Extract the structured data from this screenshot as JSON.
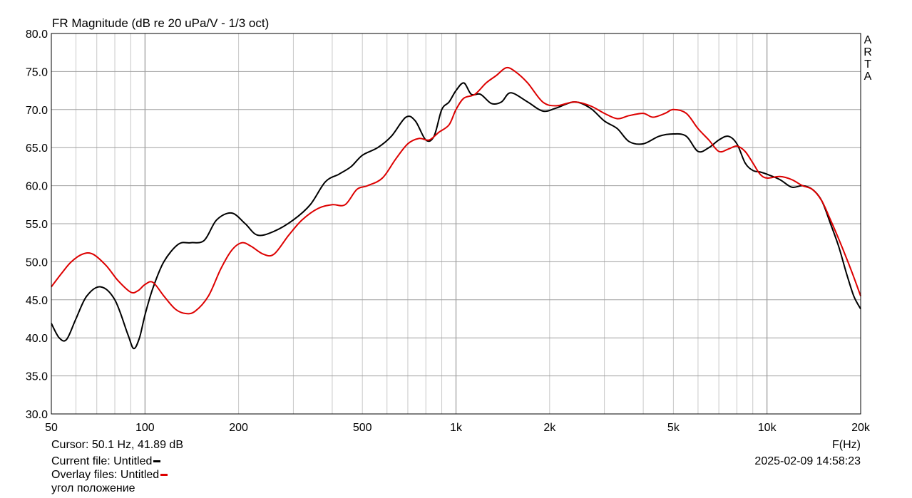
{
  "chart_data": {
    "type": "line",
    "title": "FR Magnitude (dB re 20 uPa/V - 1/3 oct)",
    "xlabel": "F(Hz)",
    "ylabel": "",
    "x_scale": "log",
    "xlim": [
      50,
      20000
    ],
    "ylim": [
      30,
      80
    ],
    "grid": true,
    "x_ticks": [
      50,
      100,
      200,
      500,
      1000,
      2000,
      5000,
      10000,
      20000
    ],
    "x_tick_labels": [
      "50",
      "100",
      "200",
      "500",
      "1k",
      "2k",
      "5k",
      "10k",
      "20k"
    ],
    "y_ticks": [
      30,
      35,
      40,
      45,
      50,
      55,
      60,
      65,
      70,
      75,
      80
    ],
    "y_tick_labels": [
      "30.0",
      "35.0",
      "40.0",
      "45.0",
      "50.0",
      "55.0",
      "60.0",
      "65.0",
      "70.0",
      "75.0",
      "80.0"
    ],
    "series": [
      {
        "name": "Untitled",
        "color": "#000000",
        "x": [
          50,
          53,
          56,
          60,
          65,
          72,
          80,
          88,
          92,
          96,
          100,
          106,
          115,
          128,
          140,
          155,
          170,
          190,
          210,
          230,
          260,
          300,
          340,
          380,
          420,
          460,
          500,
          560,
          620,
          690,
          740,
          800,
          850,
          900,
          950,
          1000,
          1060,
          1120,
          1200,
          1300,
          1400,
          1500,
          1700,
          1900,
          2100,
          2400,
          2700,
          3000,
          3300,
          3600,
          4000,
          4500,
          5000,
          5500,
          6000,
          6500,
          7000,
          7500,
          8000,
          8500,
          9000,
          9500,
          10000,
          11000,
          12000,
          13000,
          14000,
          15000,
          16000,
          17000,
          18000,
          19000,
          20000
        ],
        "y": [
          41.9,
          40.0,
          39.8,
          42.5,
          45.5,
          46.7,
          45.0,
          40.5,
          38.6,
          40.0,
          43.0,
          46.5,
          50.0,
          52.3,
          52.5,
          52.8,
          55.5,
          56.4,
          55.0,
          53.5,
          54.0,
          55.5,
          57.5,
          60.5,
          61.5,
          62.5,
          64.0,
          65.0,
          66.5,
          69.0,
          68.5,
          66.0,
          66.5,
          70.0,
          71.0,
          72.5,
          73.5,
          72.0,
          72.0,
          70.8,
          71.0,
          72.2,
          71.0,
          69.8,
          70.2,
          71.0,
          70.2,
          68.5,
          67.5,
          65.8,
          65.5,
          66.5,
          66.8,
          66.5,
          64.5,
          65.0,
          66.0,
          66.5,
          65.5,
          63.0,
          62.0,
          61.8,
          61.5,
          60.8,
          59.8,
          60.0,
          59.5,
          58.0,
          55.0,
          52.0,
          48.5,
          45.5,
          43.8
        ]
      },
      {
        "name": "Untitled",
        "color": "#dd0000",
        "x": [
          50,
          54,
          58,
          63,
          68,
          75,
          82,
          90,
          95,
          100,
          106,
          115,
          125,
          135,
          145,
          160,
          175,
          190,
          205,
          220,
          240,
          260,
          290,
          320,
          360,
          400,
          440,
          480,
          520,
          580,
          640,
          700,
          760,
          820,
          880,
          950,
          1000,
          1060,
          1150,
          1250,
          1350,
          1450,
          1550,
          1700,
          1900,
          2100,
          2400,
          2700,
          3000,
          3300,
          3600,
          4000,
          4300,
          4700,
          5000,
          5500,
          6000,
          6500,
          7000,
          7500,
          8000,
          8500,
          9000,
          9500,
          10000,
          11000,
          12000,
          13000,
          14000,
          15000,
          16000,
          17000,
          18000,
          19000,
          20000
        ],
        "y": [
          46.7,
          48.5,
          50.0,
          51.0,
          51.0,
          49.5,
          47.5,
          46.0,
          46.2,
          47.0,
          47.3,
          45.5,
          43.8,
          43.2,
          43.5,
          45.5,
          49.0,
          51.5,
          52.5,
          52.0,
          51.0,
          51.0,
          53.5,
          55.5,
          57.0,
          57.5,
          57.5,
          59.5,
          60.0,
          61.0,
          63.5,
          65.5,
          66.2,
          66.0,
          67.0,
          68.0,
          70.0,
          71.5,
          72.0,
          73.5,
          74.5,
          75.5,
          75.0,
          73.5,
          71.0,
          70.5,
          71.0,
          70.5,
          69.5,
          68.8,
          69.2,
          69.5,
          69.0,
          69.5,
          70.0,
          69.5,
          67.5,
          66.0,
          64.5,
          64.8,
          65.2,
          64.5,
          63.0,
          61.5,
          61.0,
          61.2,
          60.8,
          60.0,
          59.5,
          58.0,
          55.5,
          53.0,
          50.5,
          48.0,
          45.5
        ]
      }
    ]
  },
  "side_label": [
    "A",
    "R",
    "T",
    "A"
  ],
  "footer": {
    "cursor": "Cursor: 50.1 Hz, 41.89 dB",
    "current_file": "Current file: Untitled",
    "overlay_files": "Overlay files: Untitled",
    "note": "угол положение",
    "timestamp": "2025-02-09  14:58:23",
    "current_color": "#000000",
    "overlay_color": "#dd0000"
  }
}
